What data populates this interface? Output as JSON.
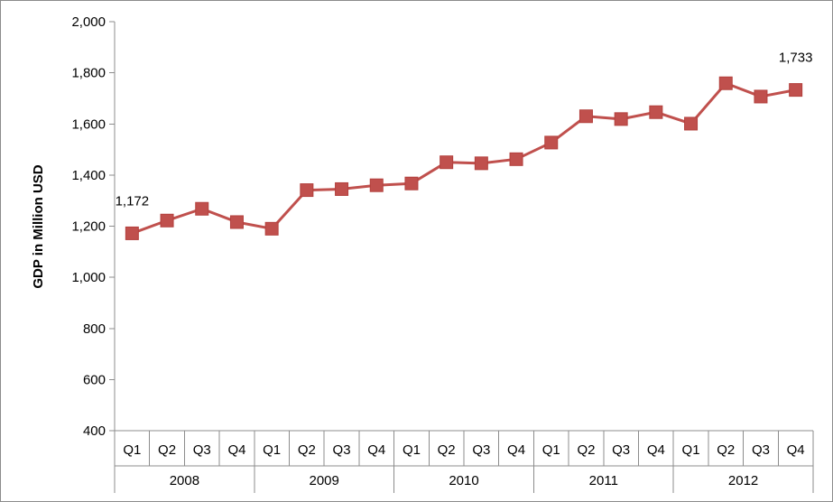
{
  "chart_data": {
    "type": "line",
    "ylabel": "GDP in Million USD",
    "ylim": [
      400,
      2000
    ],
    "yticks": [
      "400",
      "600",
      "800",
      "1,000",
      "1,200",
      "1,400",
      "1,600",
      "1,800",
      "2,000"
    ],
    "ytick_values": [
      400,
      600,
      800,
      1000,
      1200,
      1400,
      1600,
      1800,
      2000
    ],
    "grid": false,
    "legend": "none",
    "quarters": [
      "Q1",
      "Q2",
      "Q3",
      "Q4",
      "Q1",
      "Q2",
      "Q3",
      "Q4",
      "Q1",
      "Q2",
      "Q3",
      "Q4",
      "Q1",
      "Q2",
      "Q3",
      "Q4",
      "Q1",
      "Q2",
      "Q3",
      "Q4"
    ],
    "years": [
      "2008",
      "2009",
      "2010",
      "2011",
      "2012"
    ],
    "series": [
      {
        "values": [
          1172,
          1222,
          1268,
          1216,
          1190,
          1341,
          1345,
          1360,
          1367,
          1450,
          1446,
          1462,
          1527,
          1630,
          1619,
          1646,
          1601,
          1759,
          1707,
          1733
        ],
        "color": "#c0504d"
      }
    ],
    "data_labels": [
      {
        "index": 0,
        "text": "1,172"
      },
      {
        "index": 19,
        "text": "1,733"
      }
    ]
  }
}
